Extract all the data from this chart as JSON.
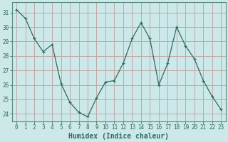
{
  "x": [
    0,
    1,
    2,
    3,
    4,
    5,
    6,
    7,
    8,
    9,
    10,
    11,
    12,
    13,
    14,
    15,
    16,
    17,
    18,
    19,
    20,
    21,
    22,
    23
  ],
  "y": [
    31.2,
    30.6,
    29.2,
    28.3,
    28.8,
    26.1,
    24.8,
    24.1,
    23.8,
    25.1,
    26.2,
    26.3,
    27.5,
    29.2,
    30.3,
    29.2,
    26.0,
    27.5,
    30.0,
    28.7,
    27.8,
    26.3,
    25.2,
    24.3
  ],
  "xlabel": "Humidex (Indice chaleur)",
  "ylim": [
    23.5,
    31.7
  ],
  "yticks": [
    24,
    25,
    26,
    27,
    28,
    29,
    30,
    31
  ],
  "xticks": [
    0,
    1,
    2,
    3,
    4,
    5,
    6,
    7,
    8,
    9,
    10,
    11,
    12,
    13,
    14,
    15,
    16,
    17,
    18,
    19,
    20,
    21,
    22,
    23
  ],
  "line_color": "#2d6b5e",
  "marker_color": "#2d6b5e",
  "bg_color": "#cce8e8",
  "grid_major_color": "#c0a8a8",
  "grid_minor_color": "#cce8e8",
  "axes_color": "#5a8a80",
  "tick_color": "#2d6b5e",
  "label_color": "#2d6b5e",
  "tick_fontsize": 5.5,
  "xlabel_fontsize": 7.0
}
